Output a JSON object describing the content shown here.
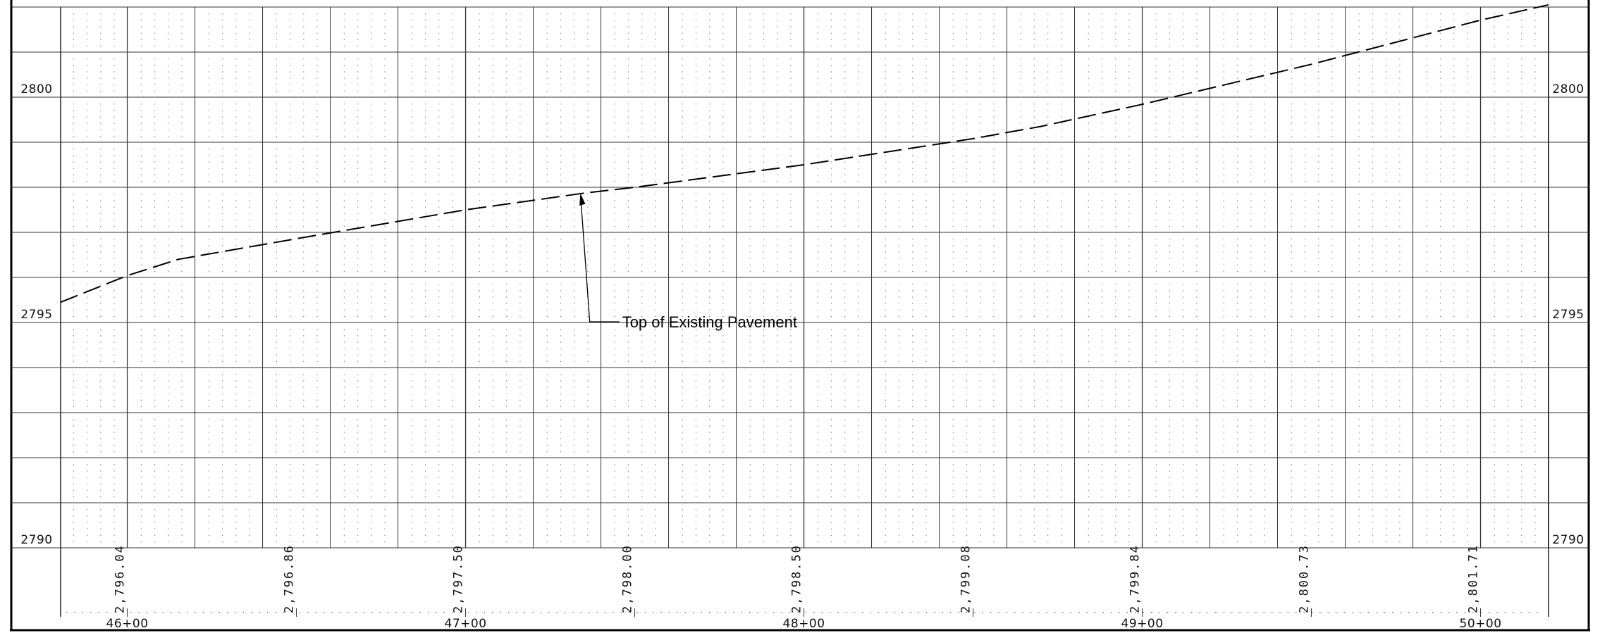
{
  "profile": {
    "y_axis": {
      "min": 2790,
      "max": 2802,
      "gridline_step": 1,
      "tick_labels": [
        "2800",
        "2795",
        "2790"
      ]
    },
    "x_axis": {
      "min_station": 4580.3,
      "max_station": 5020.1,
      "major_step": 100,
      "minor_step": 20,
      "station_labels": [
        "46+00",
        "47+00",
        "48+00",
        "49+00",
        "50+00"
      ]
    },
    "elevation_labels": [
      {
        "station": 4600,
        "text": "2,796.04"
      },
      {
        "station": 4650,
        "text": "2,796.86"
      },
      {
        "station": 4700,
        "text": "2,797.50"
      },
      {
        "station": 4750,
        "text": "2,798.00"
      },
      {
        "station": 4800,
        "text": "2,798.50"
      },
      {
        "station": 4850,
        "text": "2,799.08"
      },
      {
        "station": 4900,
        "text": "2,799.84"
      },
      {
        "station": 4950,
        "text": "2,800.73"
      },
      {
        "station": 5000,
        "text": "2,801.71"
      }
    ],
    "annotation": {
      "text": "Top of Existing Pavement",
      "arrow_station": 4734,
      "arrow_elevation": 2797.87
    }
  },
  "chart_data": {
    "type": "line",
    "title": "",
    "xlabel": "",
    "ylabel": "",
    "xlim": [
      4580.3,
      5020.1
    ],
    "ylim": [
      2790,
      2802
    ],
    "grid": true,
    "series": [
      {
        "name": "Top of Existing Pavement",
        "style": "dashed",
        "x": [
          4580.3,
          4600,
          4615,
          4650,
          4700,
          4735,
          4750,
          4800,
          4850,
          4870,
          4900,
          4950,
          5000,
          5020.1
        ],
        "y": [
          2795.45,
          2796.04,
          2796.4,
          2796.86,
          2797.5,
          2797.87,
          2798.0,
          2798.5,
          2799.08,
          2799.35,
          2799.84,
          2800.73,
          2801.71,
          2802.05
        ]
      }
    ]
  }
}
